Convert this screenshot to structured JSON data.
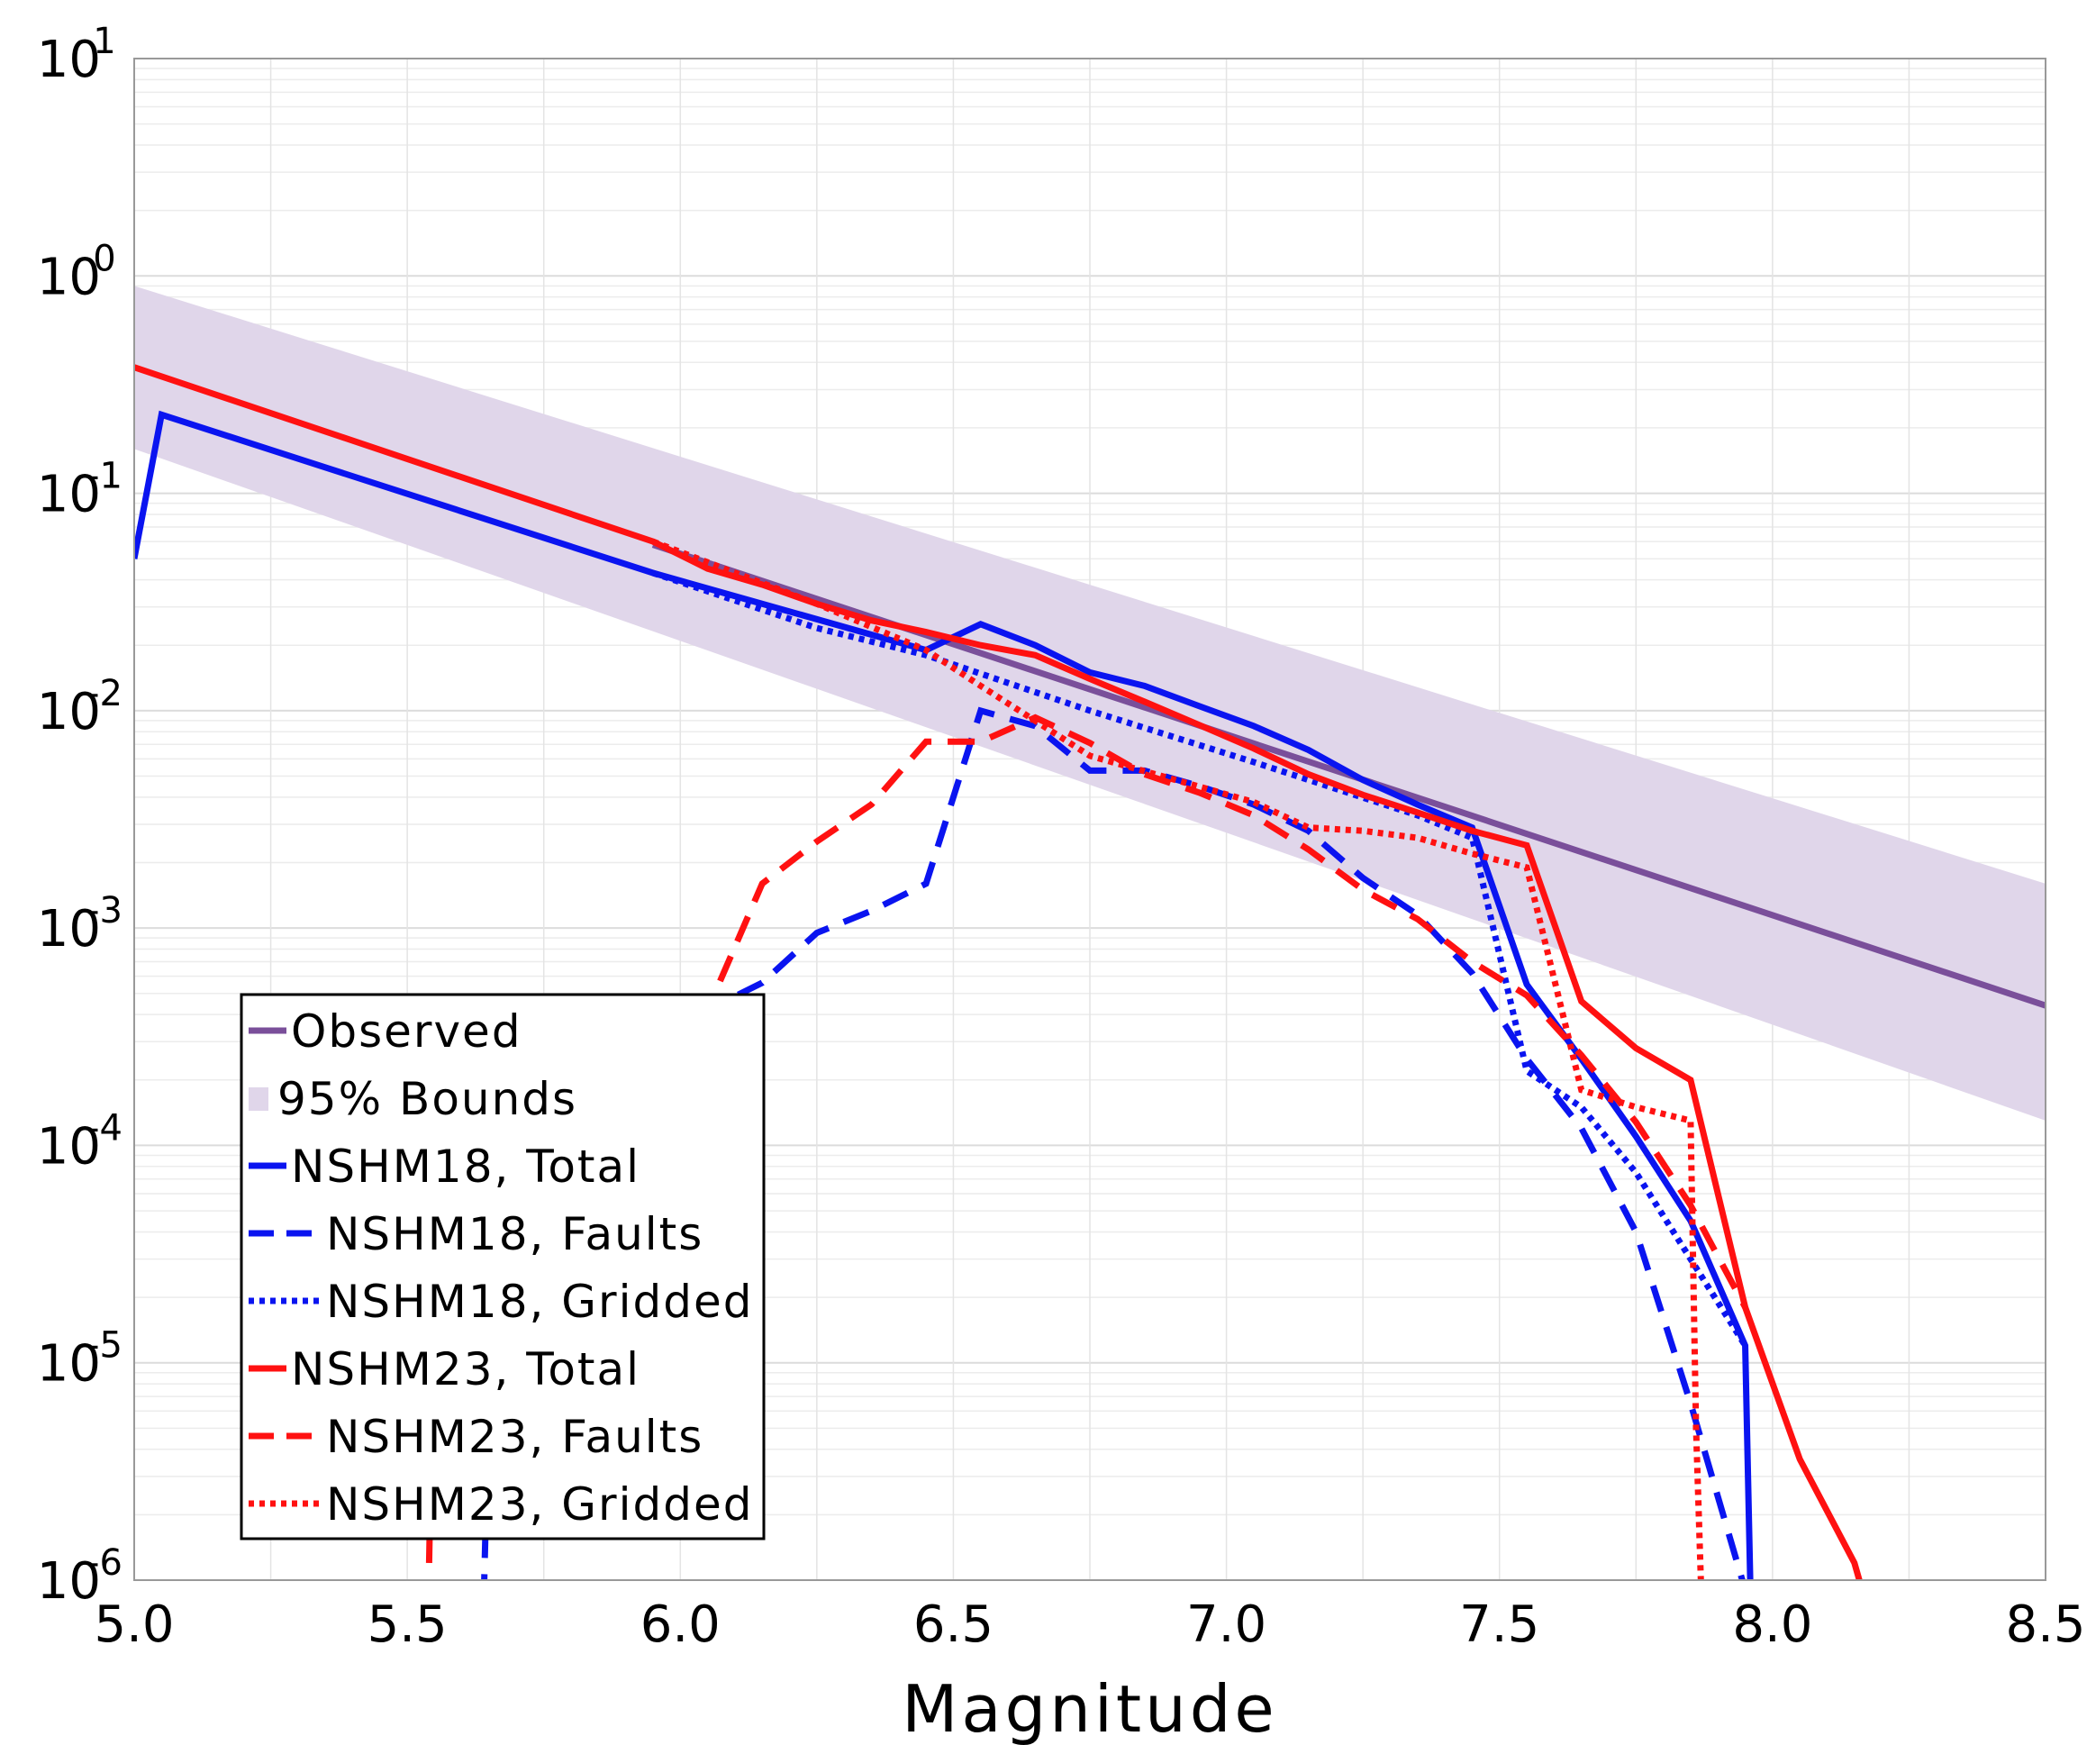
{
  "chart_data": {
    "type": "line",
    "xlabel": "Magnitude",
    "ylabel": "",
    "xlim": [
      5.0,
      8.5
    ],
    "ylim": [
      1e-06,
      10
    ],
    "yscale": "log",
    "grid": true,
    "legend_placement": "lower-left",
    "x_ticks": [
      "5.0",
      "5.5",
      "6.0",
      "6.5",
      "7.0",
      "7.5",
      "8.0",
      "8.5"
    ],
    "y_ticks": [
      {
        "base": "10",
        "exp": "1",
        "value": 10
      },
      {
        "base": "10",
        "exp": "0",
        "value": 1
      },
      {
        "base": "10",
        "exp": "-1",
        "value": 0.1
      },
      {
        "base": "10",
        "exp": "-2",
        "value": 0.01
      },
      {
        "base": "10",
        "exp": "-3",
        "value": 0.001
      },
      {
        "base": "10",
        "exp": "-4",
        "value": 0.0001
      },
      {
        "base": "10",
        "exp": "-5",
        "value": 1e-05
      },
      {
        "base": "10",
        "exp": "-6",
        "value": 1e-06
      }
    ],
    "band": {
      "name": "95% Bounds",
      "color": "#e0d6ea",
      "x": [
        5.0,
        8.5
      ],
      "lower": [
        0.16,
        0.00013
      ],
      "upper": [
        0.9,
        0.0016
      ]
    },
    "series": [
      {
        "name": "Observed",
        "color": "#7a4f9a",
        "style": "solid",
        "x": [
          5.95,
          8.5
        ],
        "y": [
          0.058,
          0.00044
        ]
      },
      {
        "name": "NSHM18, Total",
        "color": "#0a14f0",
        "style": "solid",
        "x": [
          5.0,
          5.05,
          5.95,
          6.45,
          6.55,
          6.65,
          6.75,
          6.85,
          6.95,
          7.05,
          7.15,
          7.25,
          7.35,
          7.45,
          7.55,
          7.65,
          7.75,
          7.85,
          7.95,
          7.96
        ],
        "y": [
          0.05,
          0.23,
          0.043,
          0.019,
          0.025,
          0.02,
          0.015,
          0.013,
          0.0105,
          0.0085,
          0.0066,
          0.0048,
          0.0037,
          0.0029,
          0.00055,
          0.00025,
          0.00011,
          4.5e-05,
          1.2e-05,
          8e-07
        ]
      },
      {
        "name": "NSHM18, Faults",
        "color": "#0a14f0",
        "style": "dashed",
        "x": [
          5.64,
          5.65,
          5.75,
          5.85,
          5.95,
          6.05,
          6.15,
          6.25,
          6.35,
          6.45,
          6.55,
          6.65,
          6.75,
          6.85,
          6.95,
          7.05,
          7.15,
          7.25,
          7.35,
          7.45,
          7.55,
          7.65,
          7.75,
          7.85,
          7.95
        ],
        "y": [
          8e-07,
          8e-06,
          4e-05,
          0.00012,
          0.00025,
          0.00042,
          0.00056,
          0.00095,
          0.0012,
          0.0016,
          0.01,
          0.0085,
          0.0053,
          0.0053,
          0.0045,
          0.0037,
          0.0028,
          0.0017,
          0.00115,
          0.00062,
          0.00025,
          0.00012,
          4e-05,
          6.5e-06,
          9e-07
        ]
      },
      {
        "name": "NSHM18, Gridded",
        "color": "#0a14f0",
        "style": "dotted",
        "x": [
          5.95,
          6.25,
          6.45,
          6.75,
          7.05,
          7.35,
          7.45,
          7.55,
          7.65,
          7.75,
          7.85,
          7.95
        ],
        "y": [
          0.043,
          0.024,
          0.018,
          0.01,
          0.0058,
          0.0033,
          0.0026,
          0.00022,
          0.00015,
          7.5e-05,
          3e-05,
          1.2e-05
        ]
      },
      {
        "name": "NSHM23, Total",
        "color": "#ff1111",
        "style": "solid",
        "x": [
          5.0,
          5.95,
          6.05,
          6.15,
          6.25,
          6.35,
          6.45,
          6.55,
          6.65,
          6.75,
          6.85,
          6.95,
          7.05,
          7.15,
          7.25,
          7.35,
          7.45,
          7.55,
          7.65,
          7.75,
          7.85,
          7.95,
          8.05,
          8.15,
          8.17
        ],
        "y": [
          0.38,
          0.06,
          0.045,
          0.038,
          0.031,
          0.026,
          0.023,
          0.02,
          0.018,
          0.014,
          0.011,
          0.0086,
          0.0067,
          0.0051,
          0.0041,
          0.0034,
          0.0028,
          0.0024,
          0.00046,
          0.00028,
          0.0002,
          1.8e-05,
          3.6e-06,
          1.2e-06,
          8e-07
        ]
      },
      {
        "name": "NSHM23, Faults",
        "color": "#ff1111",
        "style": "dashed",
        "x": [
          5.54,
          5.55,
          5.65,
          5.75,
          5.85,
          5.95,
          6.05,
          6.15,
          6.25,
          6.35,
          6.45,
          6.55,
          6.65,
          6.75,
          6.85,
          6.95,
          7.05,
          7.15,
          7.25,
          7.35,
          7.45,
          7.55,
          7.65,
          7.75,
          7.85,
          7.95
        ],
        "y": [
          1.2e-06,
          2.5e-05,
          2.4e-05,
          4e-05,
          0.00012,
          0.00035,
          0.00042,
          0.0016,
          0.0025,
          0.0037,
          0.0072,
          0.0072,
          0.0093,
          0.0071,
          0.0051,
          0.0042,
          0.0033,
          0.0023,
          0.0015,
          0.0011,
          0.0007,
          0.00049,
          0.00026,
          0.000128,
          5.3e-05,
          1.8e-05
        ]
      },
      {
        "name": "NSHM23, Gridded",
        "color": "#ff1111",
        "style": "dotted",
        "x": [
          5.95,
          6.25,
          6.45,
          6.55,
          6.75,
          7.05,
          7.15,
          7.25,
          7.35,
          7.45,
          7.55,
          7.65,
          7.75,
          7.85,
          7.86,
          7.87
        ],
        "y": [
          0.06,
          0.031,
          0.019,
          0.013,
          0.0062,
          0.0038,
          0.0029,
          0.0028,
          0.0026,
          0.0022,
          0.0019,
          0.00018,
          0.00015,
          0.00013,
          5e-06,
          8e-07
        ]
      }
    ],
    "faded_segments": [
      {
        "series": "NSHM18, Faults",
        "color": "#a9b3f5",
        "x": [
          5.65,
          5.75,
          5.85,
          5.95,
          6.05
        ],
        "y": [
          8e-06,
          4e-05,
          0.00012,
          0.00025,
          0.00042
        ]
      },
      {
        "series": "NSHM23, Faults",
        "color": "#f8b3b3",
        "x": [
          5.55,
          5.65,
          5.75,
          5.85,
          5.95,
          6.05
        ],
        "y": [
          2.5e-05,
          2.4e-05,
          4e-05,
          0.00012,
          0.00035,
          0.00042
        ]
      }
    ],
    "legend": [
      {
        "label": "Observed",
        "kind": "line",
        "color": "#7a4f9a",
        "style": "solid"
      },
      {
        "label": "95% Bounds",
        "kind": "patch",
        "color": "#e0d6ea"
      },
      {
        "label": "NSHM18, Total",
        "kind": "line",
        "color": "#0a14f0",
        "style": "solid"
      },
      {
        "label": "NSHM18, Faults",
        "kind": "line",
        "color": "#0a14f0",
        "style": "dashed"
      },
      {
        "label": "NSHM18, Gridded",
        "kind": "line",
        "color": "#0a14f0",
        "style": "dotted"
      },
      {
        "label": "NSHM23, Total",
        "kind": "line",
        "color": "#ff1111",
        "style": "solid"
      },
      {
        "label": "NSHM23, Faults",
        "kind": "line",
        "color": "#ff1111",
        "style": "dashed"
      },
      {
        "label": "NSHM23, Gridded",
        "kind": "line",
        "color": "#ff1111",
        "style": "dotted"
      }
    ]
  }
}
